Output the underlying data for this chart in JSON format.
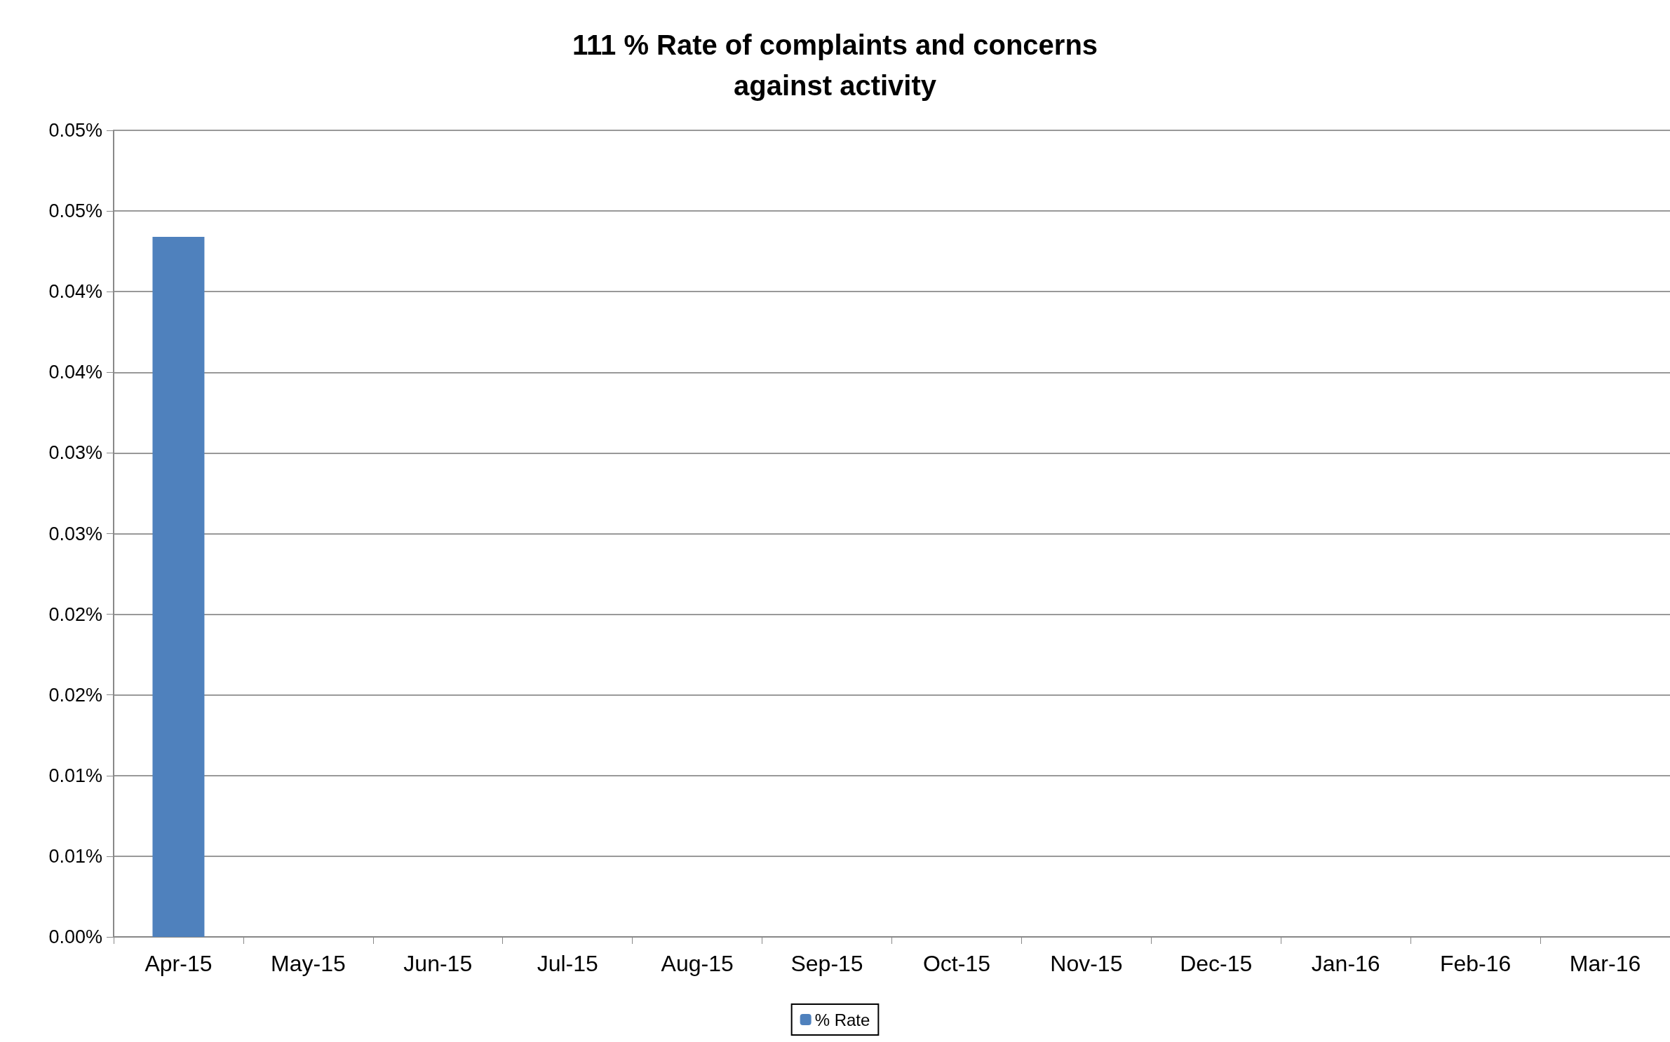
{
  "chart_data": {
    "type": "bar",
    "title": "111 % Rate of complaints and concerns\nagainst activity",
    "categories": [
      "Apr-15",
      "May-15",
      "Jun-15",
      "Jul-15",
      "Aug-15",
      "Sep-15",
      "Oct-15",
      "Nov-15",
      "Dec-15",
      "Jan-16",
      "Feb-16",
      "Mar-16"
    ],
    "series": [
      {
        "name": "% Rate",
        "color": "#4f81bd",
        "values": [
          0.0434,
          null,
          null,
          null,
          null,
          null,
          null,
          null,
          null,
          null,
          null,
          null
        ]
      }
    ],
    "ylim": [
      0,
      0.05
    ],
    "yticks": [
      {
        "value": 0,
        "label": "0.00%"
      },
      {
        "value": 0.005,
        "label": "0.01%"
      },
      {
        "value": 0.01,
        "label": "0.01%"
      },
      {
        "value": 0.015,
        "label": "0.02%"
      },
      {
        "value": 0.02,
        "label": "0.02%"
      },
      {
        "value": 0.025,
        "label": "0.03%"
      },
      {
        "value": 0.03,
        "label": "0.03%"
      },
      {
        "value": 0.035,
        "label": "0.04%"
      },
      {
        "value": 0.04,
        "label": "0.04%"
      },
      {
        "value": 0.045,
        "label": "0.05%"
      },
      {
        "value": 0.05,
        "label": "0.05%"
      }
    ],
    "grid": "y",
    "legend": "bottom"
  }
}
